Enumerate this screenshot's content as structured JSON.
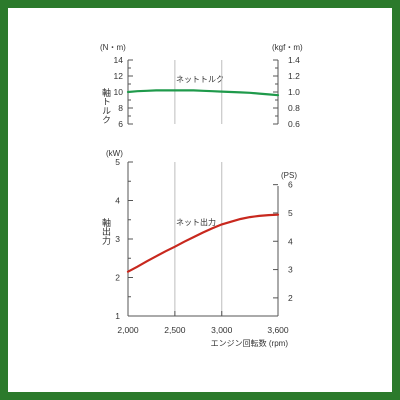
{
  "frame_color": "#2b7a2b",
  "chart_data": [
    {
      "type": "line",
      "name": "torque",
      "y_axis_label": "軸トルク",
      "left_unit": "(N・m)",
      "right_unit": "(kgf・m)",
      "left_ylim": [
        6,
        14
      ],
      "left_ticks": [
        6,
        8,
        10,
        12,
        14
      ],
      "left_minor_ticks": [
        7,
        9,
        11,
        13
      ],
      "right_ylim": [
        0.6,
        1.4
      ],
      "right_ticks": [
        "0.6",
        "0.8",
        "1.0",
        "1.2",
        "1.4"
      ],
      "right_minor_ticks": [
        "0.7",
        "0.9",
        "1.1",
        "1.3"
      ],
      "xlim": [
        2000,
        3600
      ],
      "grid_x": [
        2500,
        3000
      ],
      "series": [
        {
          "name": "ネットトルク",
          "color": "#1f9a4b",
          "x": [
            2000,
            2100,
            2200,
            2300,
            2400,
            2500,
            2600,
            2700,
            2800,
            2900,
            3000,
            3100,
            3200,
            3300,
            3400,
            3500,
            3600
          ],
          "y": [
            10.0,
            10.1,
            10.15,
            10.2,
            10.2,
            10.2,
            10.2,
            10.2,
            10.15,
            10.1,
            10.05,
            10.0,
            9.95,
            9.9,
            9.8,
            9.7,
            9.6
          ]
        }
      ]
    },
    {
      "type": "line",
      "name": "output",
      "y_axis_label": "軸出力",
      "left_unit": "(kW)",
      "right_unit": "(PS)",
      "left_ylim": [
        1,
        5
      ],
      "left_ticks": [
        1,
        2,
        3,
        4,
        5
      ],
      "left_minor_ticks": [
        1.5,
        2.5,
        3.5,
        4.5
      ],
      "right_ticks": [
        2,
        3,
        4,
        5,
        6
      ],
      "ps_per_kw": 1.36,
      "xlim": [
        2000,
        3600
      ],
      "x_ticks": [
        2000,
        2500,
        3000,
        3600
      ],
      "x_tick_labels": [
        "2,000",
        "2,500",
        "3,000",
        "3,600"
      ],
      "grid_x": [
        2500,
        3000
      ],
      "xlabel": "エンジン回転数 (rpm)",
      "series": [
        {
          "name": "ネット出力",
          "color": "#c8281e",
          "x": [
            2000,
            2100,
            2200,
            2300,
            2400,
            2500,
            2600,
            2700,
            2800,
            2900,
            3000,
            3100,
            3200,
            3300,
            3400,
            3500,
            3600
          ],
          "y": [
            2.15,
            2.28,
            2.42,
            2.55,
            2.68,
            2.8,
            2.93,
            3.05,
            3.17,
            3.28,
            3.38,
            3.45,
            3.52,
            3.57,
            3.6,
            3.62,
            3.63
          ]
        }
      ]
    }
  ]
}
